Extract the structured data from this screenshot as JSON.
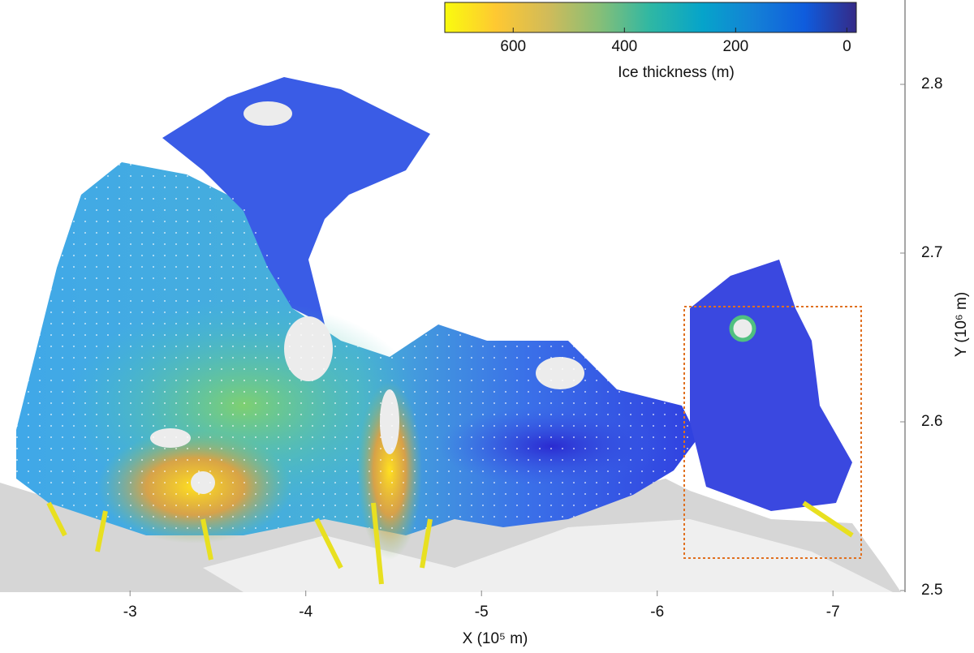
{
  "map": {
    "type": "map",
    "xlabel": "X (10⁵ m)",
    "ylabel": "Y (10⁶ m)",
    "xlim": [
      -2.26,
      -7.41
    ],
    "xticks": [
      -3,
      -4,
      -5,
      -6,
      -7
    ],
    "ylim": [
      2.5,
      2.85
    ],
    "yticks": [
      2.5,
      2.6,
      2.7,
      2.8
    ],
    "colorbar": {
      "label": "Ice thickness (m)",
      "lim": [
        723,
        -17
      ],
      "ticks": [
        600,
        400,
        200,
        0
      ],
      "colors": [
        "#f9fb0e",
        "#fec832",
        "#d1bb59",
        "#87bf77",
        "#2eb7a4",
        "#06a4ca",
        "#1481d6",
        "#0f5cdd",
        "#352a87"
      ]
    }
  }
}
